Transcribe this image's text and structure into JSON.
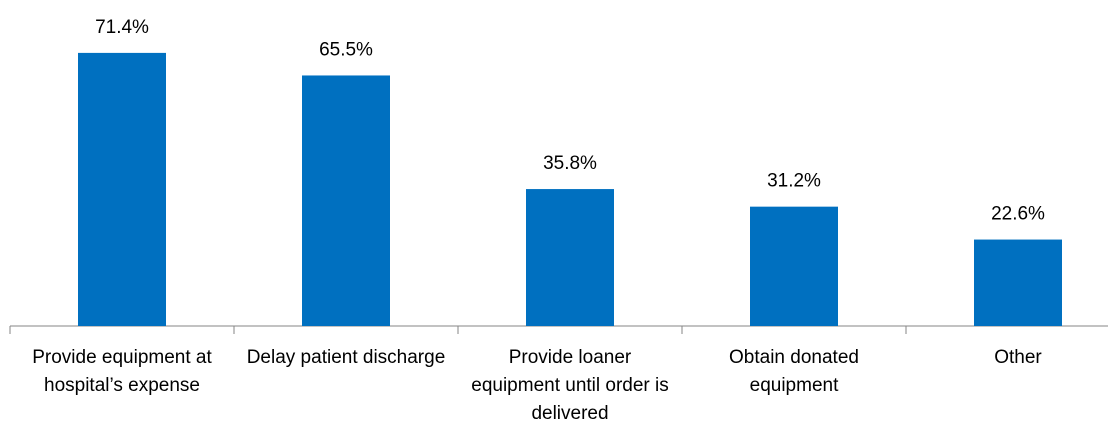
{
  "chart_data": {
    "type": "bar",
    "categories": [
      "Provide equipment at hospital’s expense",
      "Delay patient discharge",
      "Provide loaner equipment until order is delivered",
      "Obtain donated equipment",
      "Other"
    ],
    "values": [
      71.4,
      65.5,
      35.8,
      31.2,
      22.6
    ],
    "value_labels": [
      "71.4%",
      "65.5%",
      "35.8%",
      "31.2%",
      "22.6%"
    ],
    "color": "#0070c0",
    "ylim": [
      0,
      80
    ]
  }
}
